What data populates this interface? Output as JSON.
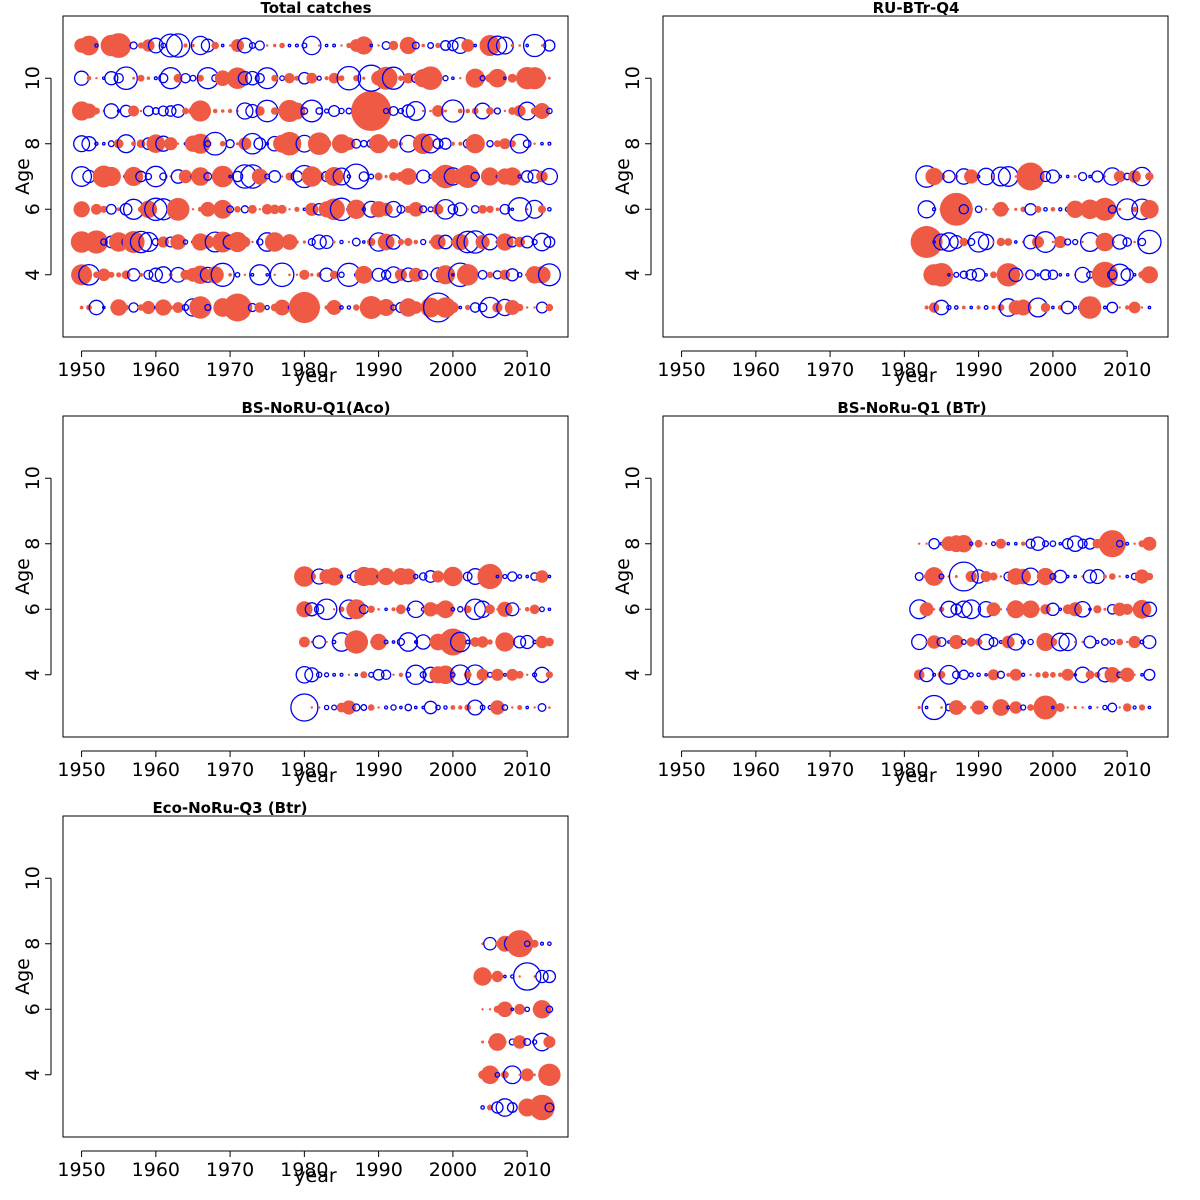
{
  "colors": {
    "positive": "#ee5a44",
    "negative": "#0000ee",
    "frame": "#000000"
  },
  "chart_data": [
    {
      "type": "scatter",
      "title": "Total catches",
      "xlabel": "year",
      "ylabel": "Age",
      "xlim": [
        1947.5,
        2015.5
      ],
      "ylim": [
        2.1,
        11.9
      ],
      "xticks": [
        "1950",
        "1960",
        "1970",
        "1980",
        "1990",
        "2000",
        "2010"
      ],
      "yticks": [
        "4",
        "6",
        "8",
        "10"
      ],
      "grid": false,
      "years": [
        1950,
        2013
      ],
      "ages": [
        3,
        4,
        5,
        6,
        7,
        8,
        9,
        10,
        11
      ],
      "max_radius": 20,
      "seed": 11,
      "highlights": [
        {
          "year": 1989,
          "age": 9,
          "size": 1.0,
          "sign": 1
        },
        {
          "year": 1998,
          "age": 3,
          "size": 0.72,
          "sign": -1
        },
        {
          "year": 1980,
          "age": 3,
          "size": 0.78,
          "sign": 1
        },
        {
          "year": 1971,
          "age": 3,
          "size": 0.7,
          "sign": 1
        },
        {
          "year": 1989,
          "age": 10,
          "size": 0.65,
          "sign": -1
        },
        {
          "year": 1987,
          "age": 7,
          "size": 0.62,
          "sign": -1
        },
        {
          "year": 1955,
          "age": 11,
          "size": 0.62,
          "sign": 1
        }
      ]
    },
    {
      "type": "scatter",
      "title": "RU-BTr-Q4",
      "xlabel": "year",
      "ylabel": "Age",
      "xlim": [
        1947.5,
        2015.5
      ],
      "ylim": [
        2.1,
        11.9
      ],
      "xticks": [
        "1950",
        "1960",
        "1970",
        "1980",
        "1990",
        "2000",
        "2010"
      ],
      "yticks": [
        "4",
        "6",
        "8",
        "10"
      ],
      "grid": false,
      "years": [
        1983,
        2013
      ],
      "ages": [
        3,
        4,
        5,
        6,
        7
      ],
      "max_radius": 20,
      "seed": 23,
      "highlights": [
        {
          "year": 1983,
          "age": 5,
          "size": 0.8,
          "sign": 1
        },
        {
          "year": 1987,
          "age": 6,
          "size": 0.82,
          "sign": 1
        },
        {
          "year": 1997,
          "age": 7,
          "size": 0.7,
          "sign": 1
        },
        {
          "year": 2007,
          "age": 4,
          "size": 0.65,
          "sign": 1
        }
      ]
    },
    {
      "type": "scatter",
      "title": "BS-NoRU-Q1(Aco)",
      "xlabel": "year",
      "ylabel": "Age",
      "xlim": [
        1947.5,
        2015.5
      ],
      "ylim": [
        2.1,
        11.9
      ],
      "xticks": [
        "1950",
        "1960",
        "1970",
        "1980",
        "1990",
        "2000",
        "2010"
      ],
      "yticks": [
        "4",
        "6",
        "8",
        "10"
      ],
      "grid": false,
      "years": [
        1980,
        2013
      ],
      "ages": [
        3,
        4,
        5,
        6,
        7
      ],
      "max_radius": 18,
      "seed": 37,
      "highlights": [
        {
          "year": 1980,
          "age": 3,
          "size": 0.75,
          "sign": -1
        },
        {
          "year": 2000,
          "age": 5,
          "size": 0.75,
          "sign": 1
        },
        {
          "year": 2005,
          "age": 7,
          "size": 0.7,
          "sign": 1
        },
        {
          "year": 1987,
          "age": 5,
          "size": 0.65,
          "sign": 1
        }
      ]
    },
    {
      "type": "scatter",
      "title": "BS-NoRu-Q1 (BTr)",
      "xlabel": "year",
      "ylabel": "Age",
      "xlim": [
        1947.5,
        2015.5
      ],
      "ylim": [
        2.1,
        11.9
      ],
      "xticks": [
        "1950",
        "1960",
        "1970",
        "1980",
        "1990",
        "2000",
        "2010"
      ],
      "yticks": [
        "4",
        "6",
        "8",
        "10"
      ],
      "grid": false,
      "years": [
        1982,
        2013
      ],
      "ages": [
        3,
        4,
        5,
        6,
        7,
        8
      ],
      "max_radius": 16,
      "seed": 53,
      "highlights": [
        {
          "year": 1988,
          "age": 7,
          "size": 0.9,
          "sign": -1
        },
        {
          "year": 2008,
          "age": 8,
          "size": 0.85,
          "sign": 1
        },
        {
          "year": 1999,
          "age": 3,
          "size": 0.75,
          "sign": 1
        },
        {
          "year": 1984,
          "age": 3,
          "size": 0.75,
          "sign": -1
        }
      ]
    },
    {
      "type": "scatter",
      "title": "Eco-NoRu-Q3 (Btr)",
      "xlabel": "year",
      "ylabel": "Age",
      "xlim": [
        1947.5,
        2015.5
      ],
      "ylim": [
        2.1,
        11.9
      ],
      "xticks": [
        "1950",
        "1960",
        "1970",
        "1980",
        "1990",
        "2000",
        "2010"
      ],
      "yticks": [
        "4",
        "6",
        "8",
        "10"
      ],
      "grid": false,
      "years": [
        2004,
        2013
      ],
      "ages": [
        3,
        4,
        5,
        6,
        7,
        8
      ],
      "max_radius": 16,
      "seed": 71,
      "highlights": [
        {
          "year": 2009,
          "age": 8,
          "size": 0.85,
          "sign": 1
        },
        {
          "year": 2010,
          "age": 7,
          "size": 0.85,
          "sign": -1
        },
        {
          "year": 2012,
          "age": 3,
          "size": 0.8,
          "sign": 1
        },
        {
          "year": 2013,
          "age": 4,
          "size": 0.7,
          "sign": 1
        }
      ]
    }
  ]
}
